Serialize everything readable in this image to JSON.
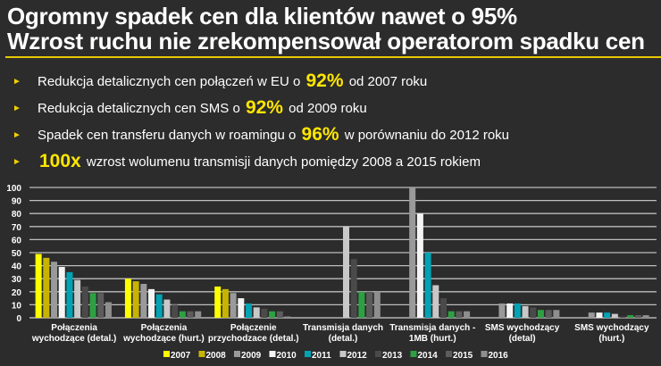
{
  "slide": {
    "title_line1": "Ogromny spadek cen dla klientów nawet o 95%",
    "title_line2": "Wzrost ruchu nie zrekompensował operatorom spadku cen",
    "bullets": [
      {
        "pre": "Redukcja detalicznych cen połączeń w EU o",
        "highlight": "92%",
        "post": "od 2007 roku"
      },
      {
        "pre": "Redukcja detalicznych cen SMS o",
        "highlight": "92%",
        "post": "od 2009 roku"
      },
      {
        "pre": "Spadek cen transferu danych w roamingu o",
        "highlight": "96%",
        "post": "w porównaniu do 2012 roku"
      },
      {
        "pre": "",
        "highlight": "100x",
        "post": "wzrost wolumenu transmisji danych pomiędzy 2008 a 2015 rokiem"
      }
    ],
    "accent_color": "#ffe600"
  },
  "chart_data": {
    "type": "bar",
    "title": "",
    "xlabel": "",
    "ylabel": "",
    "ylim": [
      0,
      100
    ],
    "yticks": [
      0,
      10,
      20,
      30,
      40,
      50,
      60,
      70,
      80,
      90,
      100
    ],
    "grid": true,
    "legend_placement": "bottom",
    "categories": [
      [
        "Połączenia",
        "wychodzące (detal.)"
      ],
      [
        "Połączenia",
        "wychodzące (hurt.)"
      ],
      [
        "Połączenie",
        "przychodzace (detal.)"
      ],
      [
        "Transmisja danych",
        "(detal.)"
      ],
      [
        "Transmisja danych -",
        "1MB (hurt.)"
      ],
      [
        "SMS wychodzący",
        "(detal)"
      ],
      [
        "SMS wychodzący",
        "(hurt.)"
      ]
    ],
    "series": [
      {
        "name": "2007",
        "color": "#ffff00",
        "values": [
          49,
          30,
          24,
          null,
          null,
          null,
          null
        ]
      },
      {
        "name": "2008",
        "color": "#c8b400",
        "values": [
          46,
          28,
          22,
          null,
          null,
          null,
          null
        ]
      },
      {
        "name": "2009",
        "color": "#9a9a9a",
        "values": [
          43,
          26,
          19,
          null,
          100,
          11,
          4
        ]
      },
      {
        "name": "2010",
        "color": "#f4f4f4",
        "values": [
          39,
          22,
          15,
          null,
          80,
          11,
          4
        ]
      },
      {
        "name": "2011",
        "color": "#00a3b4",
        "values": [
          35,
          18,
          11,
          null,
          50,
          11,
          4
        ]
      },
      {
        "name": "2012",
        "color": "#c8c8c8",
        "values": [
          29,
          14,
          8,
          70,
          25,
          9,
          3
        ]
      },
      {
        "name": "2013",
        "color": "#4a4a4a",
        "values": [
          24,
          10,
          7,
          45,
          15,
          8,
          1
        ]
      },
      {
        "name": "2014",
        "color": "#2ea043",
        "values": [
          19,
          5,
          5,
          20,
          5,
          6,
          2
        ]
      },
      {
        "name": "2015",
        "color": "#5c5c5c",
        "values": [
          19,
          5,
          5,
          20,
          5,
          6,
          2
        ]
      },
      {
        "name": "2016",
        "color": "#8e8e8e",
        "values": [
          12,
          5,
          1,
          20,
          5,
          6,
          2
        ]
      }
    ]
  }
}
